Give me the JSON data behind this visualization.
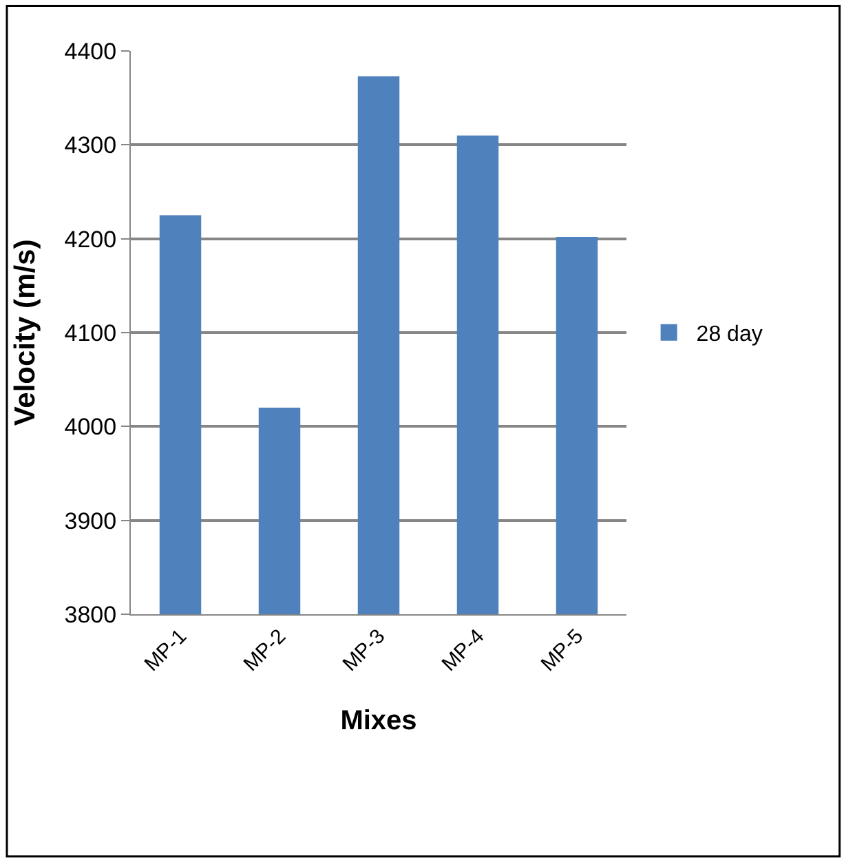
{
  "chart_data": {
    "type": "bar",
    "categories": [
      "MP-1",
      "MP-2",
      "MP-3",
      "MP-4",
      "MP-5"
    ],
    "series": [
      {
        "name": "28 day",
        "color": "#4f81bd",
        "values": [
          4225,
          4020,
          4373,
          4310,
          4202
        ]
      }
    ],
    "xlabel": "Mixes",
    "ylabel": "Velocity (m/s)",
    "ylim": [
      3800,
      4400
    ],
    "yticks": [
      3800,
      3900,
      4000,
      4100,
      4200,
      4300,
      4400
    ],
    "grid": "y",
    "legend": "right"
  }
}
